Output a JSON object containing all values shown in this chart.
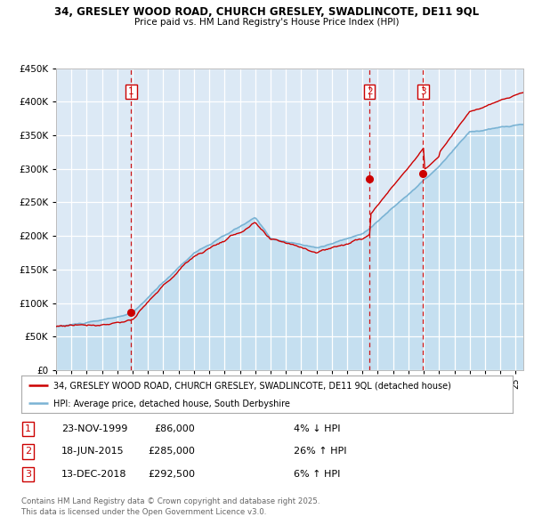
{
  "title_line1": "34, GRESLEY WOOD ROAD, CHURCH GRESLEY, SWADLINCOTE, DE11 9QL",
  "title_line2": "Price paid vs. HM Land Registry's House Price Index (HPI)",
  "legend_line1": "34, GRESLEY WOOD ROAD, CHURCH GRESLEY, SWADLINCOTE, DE11 9QL (detached house)",
  "legend_line2": "HPI: Average price, detached house, South Derbyshire",
  "sale_date1": "23-NOV-1999",
  "sale_price1": 86000,
  "sale_pct1": "4% ↓ HPI",
  "sale_date2": "18-JUN-2015",
  "sale_price2": 285000,
  "sale_pct2": "26% ↑ HPI",
  "sale_date3": "13-DEC-2018",
  "sale_price3": 292500,
  "sale_pct3": "6% ↑ HPI",
  "footer": "Contains HM Land Registry data © Crown copyright and database right 2025.\nThis data is licensed under the Open Government Licence v3.0.",
  "hpi_color": "#7ab3d4",
  "hpi_fill_color": "#c5dff0",
  "price_color": "#cc0000",
  "plot_bg": "#dce9f5",
  "grid_color": "#ffffff",
  "vline_color": "#cc0000",
  "ylim": [
    0,
    450000
  ],
  "yticks": [
    0,
    50000,
    100000,
    150000,
    200000,
    250000,
    300000,
    350000,
    400000,
    450000
  ],
  "sale_years": [
    1999.9,
    2015.46,
    2018.96
  ],
  "sale_prices": [
    86000,
    285000,
    292500
  ],
  "xmin": 1995,
  "xmax": 2025.5
}
